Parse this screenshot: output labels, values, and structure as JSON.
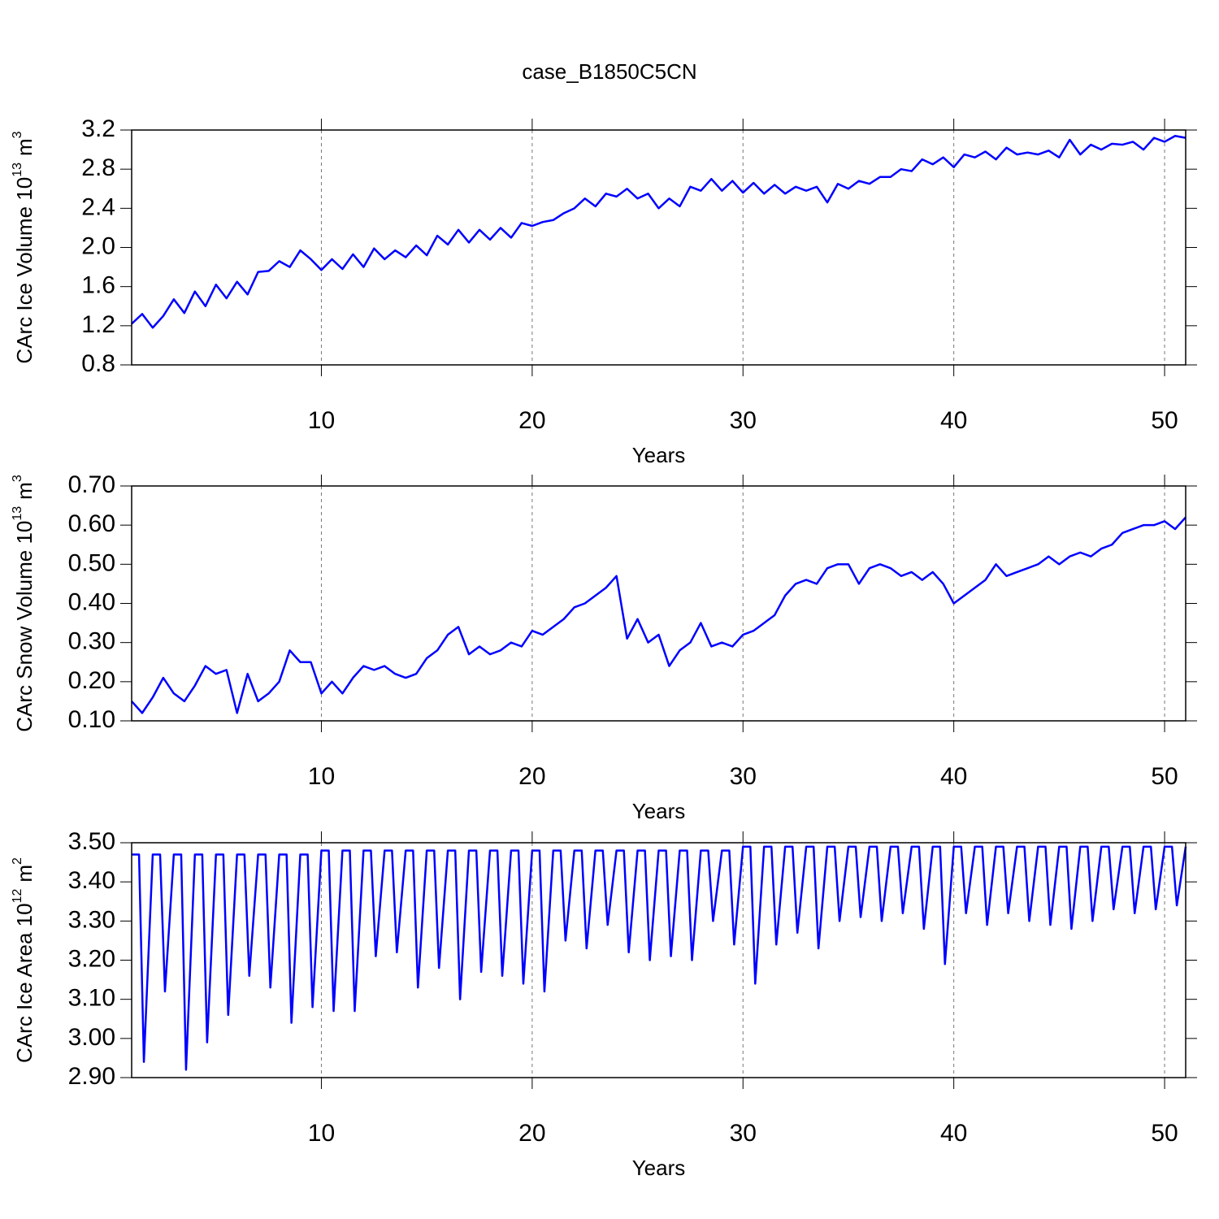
{
  "chart_data": [
    {
      "type": "line",
      "title": "case_B1850C5CN",
      "ylabel": {
        "text": "CArc Ice Volume 10",
        "exponent": "13",
        "unit": "m",
        "unit_exponent": "3"
      },
      "xlabel": "Years",
      "xlim": [
        1,
        51
      ],
      "xticks": [
        10,
        20,
        30,
        40,
        50
      ],
      "ylim": [
        0.8,
        3.2
      ],
      "yticks": [
        {
          "value": 0.8,
          "label": "0.8"
        },
        {
          "value": 1.2,
          "label": "1.2"
        },
        {
          "value": 1.6,
          "label": "1.6"
        },
        {
          "value": 2.0,
          "label": "2.0"
        },
        {
          "value": 2.4,
          "label": "2.4"
        },
        {
          "value": 2.8,
          "label": "2.8"
        },
        {
          "value": 3.2,
          "label": "3.2"
        }
      ],
      "grid": "x",
      "x": [
        1,
        1.5,
        2,
        2.5,
        3,
        3.5,
        4,
        4.5,
        5,
        5.5,
        6,
        6.5,
        7,
        7.5,
        8,
        8.5,
        9,
        9.5,
        10,
        10.5,
        11,
        11.5,
        12,
        12.5,
        13,
        13.5,
        14,
        14.5,
        15,
        15.5,
        16,
        16.5,
        17,
        17.5,
        18,
        18.5,
        19,
        19.5,
        20,
        20.5,
        21,
        21.5,
        22,
        22.5,
        23,
        23.5,
        24,
        24.5,
        25,
        25.5,
        26,
        26.5,
        27,
        27.5,
        28,
        28.5,
        29,
        29.5,
        30,
        30.5,
        31,
        31.5,
        32,
        32.5,
        33,
        33.5,
        34,
        34.5,
        35,
        35.5,
        36,
        36.5,
        37,
        37.5,
        38,
        38.5,
        39,
        39.5,
        40,
        40.5,
        41,
        41.5,
        42,
        42.5,
        43,
        43.5,
        44,
        44.5,
        45,
        45.5,
        46,
        46.5,
        47,
        47.5,
        48,
        48.5,
        49,
        49.5,
        50,
        50.5,
        51
      ],
      "series": [
        {
          "color": "#0000ff",
          "values": [
            1.22,
            1.32,
            1.18,
            1.3,
            1.47,
            1.33,
            1.55,
            1.4,
            1.62,
            1.48,
            1.65,
            1.52,
            1.75,
            1.76,
            1.86,
            1.8,
            1.97,
            1.88,
            1.77,
            1.88,
            1.78,
            1.93,
            1.8,
            1.99,
            1.88,
            1.97,
            1.9,
            2.02,
            1.92,
            2.12,
            2.03,
            2.18,
            2.05,
            2.18,
            2.08,
            2.2,
            2.1,
            2.25,
            2.22,
            2.26,
            2.28,
            2.35,
            2.4,
            2.5,
            2.42,
            2.55,
            2.52,
            2.6,
            2.5,
            2.55,
            2.4,
            2.5,
            2.42,
            2.62,
            2.58,
            2.7,
            2.58,
            2.68,
            2.56,
            2.66,
            2.55,
            2.64,
            2.55,
            2.62,
            2.58,
            2.62,
            2.46,
            2.65,
            2.6,
            2.68,
            2.65,
            2.72,
            2.72,
            2.8,
            2.78,
            2.9,
            2.85,
            2.92,
            2.82,
            2.95,
            2.92,
            2.98,
            2.9,
            3.02,
            2.95,
            2.97,
            2.95,
            2.99,
            2.92,
            3.1,
            2.95,
            3.05,
            3.0,
            3.06,
            3.05,
            3.08,
            3.0,
            3.12,
            3.08,
            3.14,
            3.12
          ]
        }
      ]
    },
    {
      "type": "line",
      "ylabel": {
        "text": "CArc Snow Volume 10",
        "exponent": "13",
        "unit": "m",
        "unit_exponent": "3"
      },
      "xlabel": "Years",
      "xlim": [
        1,
        51
      ],
      "xticks": [
        10,
        20,
        30,
        40,
        50
      ],
      "ylim": [
        0.1,
        0.7
      ],
      "yticks": [
        {
          "value": 0.1,
          "label": "0.10"
        },
        {
          "value": 0.2,
          "label": "0.20"
        },
        {
          "value": 0.3,
          "label": "0.30"
        },
        {
          "value": 0.4,
          "label": "0.40"
        },
        {
          "value": 0.5,
          "label": "0.50"
        },
        {
          "value": 0.6,
          "label": "0.60"
        },
        {
          "value": 0.7,
          "label": "0.70"
        }
      ],
      "grid": "x",
      "x": [
        1,
        1.5,
        2,
        2.5,
        3,
        3.5,
        4,
        4.5,
        5,
        5.5,
        6,
        6.5,
        7,
        7.5,
        8,
        8.5,
        9,
        9.5,
        10,
        10.5,
        11,
        11.5,
        12,
        12.5,
        13,
        13.5,
        14,
        14.5,
        15,
        15.5,
        16,
        16.5,
        17,
        17.5,
        18,
        18.5,
        19,
        19.5,
        20,
        20.5,
        21,
        21.5,
        22,
        22.5,
        23,
        23.5,
        24,
        24.5,
        25,
        25.5,
        26,
        26.5,
        27,
        27.5,
        28,
        28.5,
        29,
        29.5,
        30,
        30.5,
        31,
        31.5,
        32,
        32.5,
        33,
        33.5,
        34,
        34.5,
        35,
        35.5,
        36,
        36.5,
        37,
        37.5,
        38,
        38.5,
        39,
        39.5,
        40,
        40.5,
        41,
        41.5,
        42,
        42.5,
        43,
        43.5,
        44,
        44.5,
        45,
        45.5,
        46,
        46.5,
        47,
        47.5,
        48,
        48.5,
        49,
        49.5,
        50,
        50.5,
        51
      ],
      "series": [
        {
          "color": "#0000ff",
          "values": [
            0.15,
            0.12,
            0.16,
            0.21,
            0.17,
            0.15,
            0.19,
            0.24,
            0.22,
            0.23,
            0.12,
            0.22,
            0.15,
            0.17,
            0.2,
            0.28,
            0.25,
            0.25,
            0.17,
            0.2,
            0.17,
            0.21,
            0.24,
            0.23,
            0.24,
            0.22,
            0.21,
            0.22,
            0.26,
            0.28,
            0.32,
            0.34,
            0.27,
            0.29,
            0.27,
            0.28,
            0.3,
            0.29,
            0.33,
            0.32,
            0.34,
            0.36,
            0.39,
            0.4,
            0.42,
            0.44,
            0.47,
            0.31,
            0.36,
            0.3,
            0.32,
            0.24,
            0.28,
            0.3,
            0.35,
            0.29,
            0.3,
            0.29,
            0.32,
            0.33,
            0.35,
            0.37,
            0.42,
            0.45,
            0.46,
            0.45,
            0.49,
            0.5,
            0.5,
            0.45,
            0.49,
            0.5,
            0.49,
            0.47,
            0.48,
            0.46,
            0.48,
            0.45,
            0.4,
            0.42,
            0.44,
            0.46,
            0.5,
            0.47,
            0.48,
            0.49,
            0.5,
            0.52,
            0.5,
            0.52,
            0.53,
            0.52,
            0.54,
            0.55,
            0.58,
            0.59,
            0.6,
            0.6,
            0.61,
            0.59,
            0.62
          ]
        }
      ]
    },
    {
      "type": "line",
      "ylabel": {
        "text": "CArc Ice Area 10",
        "exponent": "12",
        "unit": "m",
        "unit_exponent": "2"
      },
      "xlabel": "Years",
      "xlim": [
        1,
        51
      ],
      "xticks": [
        10,
        20,
        30,
        40,
        50
      ],
      "ylim": [
        2.9,
        3.5
      ],
      "yticks": [
        {
          "value": 2.9,
          "label": "2.90"
        },
        {
          "value": 3.0,
          "label": "3.00"
        },
        {
          "value": 3.1,
          "label": "3.10"
        },
        {
          "value": 3.2,
          "label": "3.20"
        },
        {
          "value": 3.3,
          "label": "3.30"
        },
        {
          "value": 3.4,
          "label": "3.40"
        },
        {
          "value": 3.5,
          "label": "3.50"
        }
      ],
      "grid": "x",
      "x": [
        1,
        1.35,
        1.58,
        2,
        2.35,
        2.58,
        3,
        3.35,
        3.58,
        4,
        4.35,
        4.58,
        5,
        5.35,
        5.58,
        6,
        6.35,
        6.58,
        7,
        7.35,
        7.58,
        8,
        8.35,
        8.58,
        9,
        9.35,
        9.58,
        10,
        10.35,
        10.58,
        11,
        11.35,
        11.58,
        12,
        12.35,
        12.58,
        13,
        13.35,
        13.58,
        14,
        14.35,
        14.58,
        15,
        15.35,
        15.58,
        16,
        16.35,
        16.58,
        17,
        17.35,
        17.58,
        18,
        18.35,
        18.58,
        19,
        19.35,
        19.58,
        20,
        20.35,
        20.58,
        21,
        21.35,
        21.58,
        22,
        22.35,
        22.58,
        23,
        23.35,
        23.58,
        24,
        24.35,
        24.58,
        25,
        25.35,
        25.58,
        26,
        26.35,
        26.58,
        27,
        27.35,
        27.58,
        28,
        28.35,
        28.58,
        29,
        29.35,
        29.58,
        30,
        30.35,
        30.58,
        31,
        31.35,
        31.58,
        32,
        32.35,
        32.58,
        33,
        33.35,
        33.58,
        34,
        34.35,
        34.58,
        35,
        35.35,
        35.58,
        36,
        36.35,
        36.58,
        37,
        37.35,
        37.58,
        38,
        38.35,
        38.58,
        39,
        39.35,
        39.58,
        40,
        40.35,
        40.58,
        41,
        41.35,
        41.58,
        42,
        42.35,
        42.58,
        43,
        43.35,
        43.58,
        44,
        44.35,
        44.58,
        45,
        45.35,
        45.58,
        46,
        46.35,
        46.58,
        47,
        47.35,
        47.58,
        48,
        48.35,
        48.58,
        49,
        49.35,
        49.58,
        50,
        50.35,
        50.58,
        51
      ],
      "series": [
        {
          "color": "#0000ff",
          "values": [
            3.47,
            3.47,
            2.94,
            3.47,
            3.47,
            3.12,
            3.47,
            3.47,
            2.92,
            3.47,
            3.47,
            2.99,
            3.47,
            3.47,
            3.06,
            3.47,
            3.47,
            3.16,
            3.47,
            3.47,
            3.13,
            3.47,
            3.47,
            3.04,
            3.47,
            3.47,
            3.08,
            3.48,
            3.48,
            3.07,
            3.48,
            3.48,
            3.07,
            3.48,
            3.48,
            3.21,
            3.48,
            3.48,
            3.22,
            3.48,
            3.48,
            3.13,
            3.48,
            3.48,
            3.18,
            3.48,
            3.48,
            3.1,
            3.48,
            3.48,
            3.17,
            3.48,
            3.48,
            3.16,
            3.48,
            3.48,
            3.14,
            3.48,
            3.48,
            3.12,
            3.48,
            3.48,
            3.25,
            3.48,
            3.48,
            3.23,
            3.48,
            3.48,
            3.29,
            3.48,
            3.48,
            3.22,
            3.48,
            3.48,
            3.2,
            3.48,
            3.48,
            3.21,
            3.48,
            3.48,
            3.2,
            3.48,
            3.48,
            3.3,
            3.48,
            3.48,
            3.24,
            3.49,
            3.49,
            3.14,
            3.49,
            3.49,
            3.24,
            3.49,
            3.49,
            3.27,
            3.49,
            3.49,
            3.23,
            3.49,
            3.49,
            3.3,
            3.49,
            3.49,
            3.31,
            3.49,
            3.49,
            3.3,
            3.49,
            3.49,
            3.32,
            3.49,
            3.49,
            3.28,
            3.49,
            3.49,
            3.19,
            3.49,
            3.49,
            3.32,
            3.49,
            3.49,
            3.29,
            3.49,
            3.49,
            3.32,
            3.49,
            3.49,
            3.3,
            3.49,
            3.49,
            3.29,
            3.49,
            3.49,
            3.28,
            3.49,
            3.49,
            3.3,
            3.49,
            3.49,
            3.33,
            3.49,
            3.49,
            3.32,
            3.49,
            3.49,
            3.33,
            3.49,
            3.49,
            3.34,
            3.49
          ]
        }
      ]
    }
  ]
}
